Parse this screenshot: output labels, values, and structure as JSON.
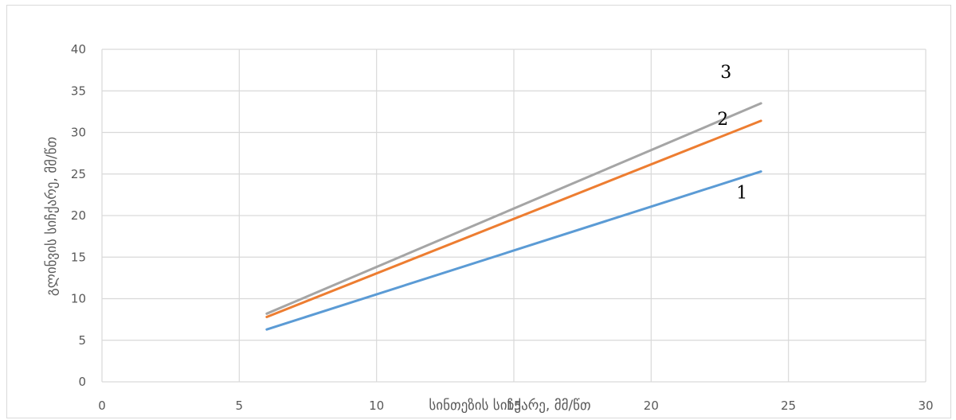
{
  "chart_data": {
    "type": "line",
    "xlabel": "სინთეზის სიჩქარე, მმ/წთ",
    "ylabel": "გლინვის სიჩქარე, მმ/წთ",
    "xlim": [
      0,
      30
    ],
    "ylim": [
      0,
      40
    ],
    "xticks": [
      "0",
      "5",
      "10",
      "15",
      "20",
      "25",
      "30"
    ],
    "yticks": [
      "0",
      "5",
      "10",
      "15",
      "20",
      "25",
      "30",
      "35",
      "40"
    ],
    "grid": true,
    "series": [
      {
        "name": "1",
        "color": "#5b9bd5",
        "x": [
          6,
          24
        ],
        "y": [
          6.3,
          25.3
        ]
      },
      {
        "name": "2",
        "color": "#ed7d31",
        "x": [
          6,
          24
        ],
        "y": [
          7.8,
          31.4
        ]
      },
      {
        "name": "3",
        "color": "#a5a5a5",
        "x": [
          6,
          24
        ],
        "y": [
          8.2,
          33.5
        ]
      }
    ]
  }
}
